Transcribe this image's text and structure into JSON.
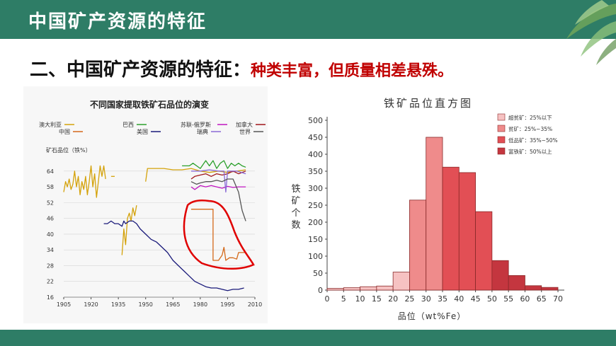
{
  "header": {
    "title": "中国矿产资源的特征"
  },
  "heading": {
    "main": "二、中国矿产资源的特征：",
    "sub": "种类丰富，但质量相差悬殊。"
  },
  "colors": {
    "header_bg": "#2e7d66",
    "accent_red": "#c00000"
  },
  "chart_data": [
    {
      "type": "line",
      "title": "不同国家提取铁矿石品位的演变",
      "ylabel": "矿石品位（铁%）",
      "xlabel": "",
      "xlim": [
        1905,
        2010
      ],
      "ylim": [
        16,
        68
      ],
      "x_ticks": [
        "1905",
        "1920",
        "1935",
        "1950",
        "1965",
        "1980",
        "1995",
        "2010"
      ],
      "y_ticks": [
        "16",
        "22",
        "28",
        "34",
        "40",
        "46",
        "52",
        "58",
        "64"
      ],
      "legend": [
        "澳大利亚",
        "巴西",
        "苏联-俄罗斯",
        "加拿大",
        "中国",
        "美国",
        "瑞典",
        "世界"
      ],
      "series": [
        {
          "name": "澳大利亚",
          "color": "#d4a20a",
          "points": [
            [
              1905,
              56
            ],
            [
              1906,
              60
            ],
            [
              1907,
              58
            ],
            [
              1908,
              61
            ],
            [
              1909,
              57
            ],
            [
              1910,
              59
            ],
            [
              1911,
              64
            ],
            [
              1912,
              58
            ],
            [
              1913,
              62
            ],
            [
              1914,
              55
            ],
            [
              1915,
              60
            ],
            [
              1916,
              57
            ],
            [
              1917,
              62
            ],
            [
              1918,
              55
            ],
            [
              1919,
              60
            ],
            [
              1920,
              66
            ],
            [
              1921,
              58
            ],
            [
              1922,
              63
            ],
            [
              1923,
              54
            ],
            [
              1924,
              60
            ],
            [
              1925,
              66
            ],
            [
              1926,
              62
            ],
            [
              1927,
              66
            ],
            [
              1928,
              61
            ]
          ]
        },
        {
          "name": "澳大利亚",
          "color": "#d4a20a",
          "points": [
            [
              1937,
              32
            ],
            [
              1938,
              42
            ],
            [
              1939,
              36
            ],
            [
              1940,
              46
            ],
            [
              1941,
              48
            ],
            [
              1942,
              45
            ],
            [
              1943,
              50
            ],
            [
              1944,
              47
            ],
            [
              1945,
              51
            ]
          ]
        },
        {
          "name": "澳大利亚",
          "color": "#d4a20a",
          "points": [
            [
              1931,
              62
            ],
            [
              1933,
              62
            ]
          ]
        },
        {
          "name": "澳大利亚",
          "color": "#d4a20a",
          "points": [
            [
              1950,
              60
            ],
            [
              1951,
              65
            ],
            [
              1955,
              65
            ],
            [
              1960,
              65
            ],
            [
              1965,
              64.5
            ],
            [
              1970,
              64.5
            ],
            [
              1975,
              65
            ],
            [
              1980,
              64
            ],
            [
              1985,
              63.5
            ],
            [
              1990,
              64
            ],
            [
              1995,
              63.5
            ],
            [
              2000,
              64
            ],
            [
              2005,
              64.5
            ]
          ]
        },
        {
          "name": "巴西",
          "color": "#2ca02c",
          "points": [
            [
              1970,
              66
            ],
            [
              1974,
              66
            ],
            [
              1976,
              67
            ],
            [
              1980,
              65
            ],
            [
              1983,
              68
            ],
            [
              1985,
              66
            ],
            [
              1987,
              68
            ],
            [
              1989,
              65
            ],
            [
              1991,
              67
            ],
            [
              1993,
              68
            ],
            [
              1995,
              65
            ],
            [
              1997,
              67
            ],
            [
              1999,
              66
            ],
            [
              2001,
              67
            ],
            [
              2003,
              66
            ],
            [
              2005,
              65.5
            ]
          ]
        },
        {
          "name": "苏联-俄罗斯",
          "color": "#c016c0",
          "points": [
            [
              1975,
              58
            ],
            [
              1977,
              57
            ],
            [
              1980,
              58.5
            ],
            [
              1983,
              58
            ],
            [
              1986,
              58.5
            ],
            [
              1989,
              58
            ],
            [
              1992,
              57.5
            ],
            [
              1995,
              58.2
            ],
            [
              1998,
              57.8
            ],
            [
              2001,
              58
            ],
            [
              2005,
              58
            ]
          ]
        },
        {
          "name": "加拿大",
          "color": "#a0161a",
          "points": [
            [
              1975,
              61
            ],
            [
              1977,
              62
            ],
            [
              1980,
              62.5
            ],
            [
              1983,
              63
            ],
            [
              1986,
              62
            ],
            [
              1989,
              63
            ],
            [
              1992,
              62.5
            ],
            [
              1995,
              63
            ],
            [
              1998,
              64
            ],
            [
              2001,
              63
            ],
            [
              2005,
              64
            ]
          ]
        },
        {
          "name": "中国",
          "color": "#d4691a",
          "points": [
            [
              1975,
              49.5
            ],
            [
              1979,
              49.5
            ],
            [
              1983,
              49.5
            ],
            [
              1987,
              49.5
            ],
            [
              1987,
              30
            ],
            [
              1990,
              30
            ],
            [
              1992,
              32
            ],
            [
              1993,
              35
            ],
            [
              1994,
              30
            ],
            [
              1996,
              31
            ],
            [
              1998,
              31
            ],
            [
              2000,
              30.5
            ],
            [
              2001,
              33
            ],
            [
              2003,
              33
            ],
            [
              2005,
              33
            ]
          ]
        },
        {
          "name": "美国",
          "color": "#1a1a7a",
          "points": [
            [
              1927,
              44
            ],
            [
              1929,
              44
            ],
            [
              1931,
              45
            ],
            [
              1933,
              44
            ],
            [
              1935,
              44
            ],
            [
              1937,
              43
            ],
            [
              1938,
              45
            ],
            [
              1939,
              44
            ],
            [
              1941,
              45
            ],
            [
              1943,
              45
            ],
            [
              1945,
              44
            ],
            [
              1947,
              42
            ],
            [
              1950,
              40
            ],
            [
              1953,
              38
            ],
            [
              1956,
              37
            ],
            [
              1959,
              35
            ],
            [
              1962,
              33
            ],
            [
              1965,
              30
            ],
            [
              1968,
              28
            ],
            [
              1971,
              26
            ],
            [
              1974,
              24
            ],
            [
              1977,
              22
            ],
            [
              1980,
              21
            ],
            [
              1983,
              20
            ],
            [
              1986,
              19.5
            ],
            [
              1989,
              19.5
            ],
            [
              1992,
              19
            ],
            [
              1995,
              18.5
            ],
            [
              1998,
              19
            ],
            [
              2001,
              19
            ],
            [
              2004,
              19.5
            ]
          ]
        },
        {
          "name": "瑞典",
          "color": "#8a6ad6",
          "points": [
            [
              1975,
              64
            ],
            [
              1980,
              64
            ],
            [
              1985,
              64.5
            ],
            [
              1990,
              64
            ],
            [
              1993,
              64
            ],
            [
              1994,
              56
            ],
            [
              1995,
              64
            ],
            [
              2000,
              64
            ],
            [
              2005,
              63
            ]
          ]
        },
        {
          "name": "世界",
          "color": "#555555",
          "points": [
            [
              1975,
              60
            ],
            [
              1978,
              59
            ],
            [
              1980,
              59.5
            ],
            [
              1983,
              60
            ],
            [
              1986,
              60
            ],
            [
              1989,
              60.5
            ],
            [
              1992,
              60
            ],
            [
              1995,
              61
            ],
            [
              1998,
              61
            ],
            [
              2001,
              56
            ],
            [
              2003,
              49
            ],
            [
              2005,
              45
            ]
          ]
        }
      ]
    },
    {
      "type": "bar",
      "title": "铁矿品位直方图",
      "xlabel": "品位（wt%Fe）",
      "ylabel": "铁矿个数",
      "ylim": [
        0,
        500
      ],
      "y_ticks": [
        "0",
        "50",
        "100",
        "150",
        "200",
        "250",
        "300",
        "350",
        "400",
        "450",
        "500"
      ],
      "x_ticks": [
        "0",
        "5",
        "10",
        "15",
        "20",
        "25",
        "30",
        "35",
        "40",
        "45",
        "50",
        "55",
        "60",
        "65",
        "70"
      ],
      "legend": [
        {
          "label": "超贫矿：25%以下",
          "color": "#f6c2c2"
        },
        {
          "label": "贫矿：25%~35%",
          "color": "#ef8b8b"
        },
        {
          "label": "低品矿：35%~50%",
          "color": "#e24f55"
        },
        {
          "label": "富铁矿：50%以上",
          "color": "#c4363f"
        }
      ],
      "bins": [
        {
          "from": 0,
          "to": 5,
          "value": 5
        },
        {
          "from": 5,
          "to": 10,
          "value": 7
        },
        {
          "from": 10,
          "to": 15,
          "value": 10
        },
        {
          "from": 15,
          "to": 20,
          "value": 12
        },
        {
          "from": 20,
          "to": 25,
          "value": 53
        },
        {
          "from": 25,
          "to": 30,
          "value": 265
        },
        {
          "from": 30,
          "to": 35,
          "value": 450
        },
        {
          "from": 35,
          "to": 40,
          "value": 362
        },
        {
          "from": 40,
          "to": 45,
          "value": 346
        },
        {
          "from": 45,
          "to": 50,
          "value": 231
        },
        {
          "from": 50,
          "to": 55,
          "value": 87
        },
        {
          "from": 55,
          "to": 60,
          "value": 43
        },
        {
          "from": 60,
          "to": 65,
          "value": 13
        },
        {
          "from": 65,
          "to": 70,
          "value": 8
        }
      ]
    }
  ]
}
